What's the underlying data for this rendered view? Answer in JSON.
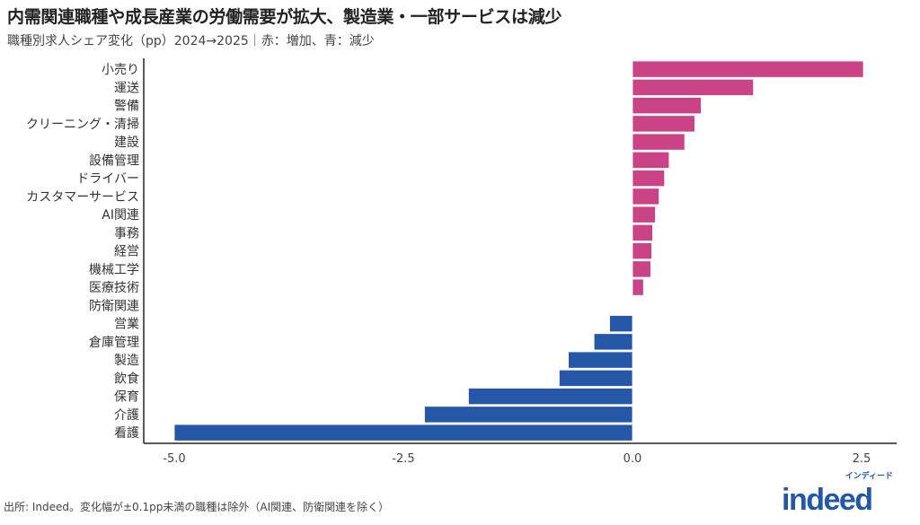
{
  "title": "内需関連職種や成長産業の労働需要が拡大、製造業・一部サービスは減少",
  "subtitle": "職種別求人シェア変化（pp）2024→2025｜赤：増加、青：減少",
  "footer": "出所: Indeed。変化幅が±0.1pp未満の職種は除外（AI関連、防衛関連を除く）",
  "logo": {
    "kana": "インディード",
    "word": "indeed"
  },
  "chart_data": {
    "type": "bar",
    "orientation": "horizontal",
    "categories": [
      "小売り",
      "運送",
      "警備",
      "クリーニング・清掃",
      "建設",
      "設備管理",
      "ドライバー",
      "カスタマーサービス",
      "AI関連",
      "事務",
      "経営",
      "機械工学",
      "医療技術",
      "防衛関連",
      "営業",
      "倉庫管理",
      "製造",
      "飲食",
      "保育",
      "介護",
      "看護"
    ],
    "values": [
      2.52,
      1.32,
      0.75,
      0.68,
      0.57,
      0.4,
      0.35,
      0.29,
      0.25,
      0.22,
      0.21,
      0.2,
      0.12,
      0.0,
      -0.25,
      -0.42,
      -0.7,
      -0.8,
      -1.79,
      -2.27,
      -5.0
    ],
    "xlim": [
      -5.4,
      2.88
    ],
    "xticks": [
      -5.0,
      -2.5,
      0.0,
      2.5
    ],
    "xtick_labels": [
      "-5.0",
      "-2.5",
      "0.0",
      "2.5"
    ],
    "xlabel": "",
    "ylabel": "",
    "grid": false,
    "colors": {
      "increase": "#c94386",
      "decrease": "#2557a7"
    }
  }
}
